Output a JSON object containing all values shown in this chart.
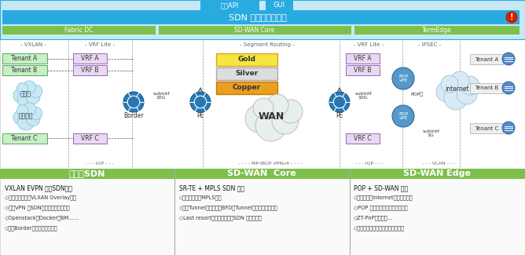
{
  "title_bar": "SDN 网络业务编排器",
  "north_api": "北向API",
  "gui": "GUI",
  "fabric_dc": "Fabric DC",
  "sd_wan_core": "SD-WAN Core",
  "term_edge": "TermEdge",
  "zones": [
    "VXLAN",
    "VRF Lite",
    "Segment Routing",
    "VRF Lite",
    "IPSEC"
  ],
  "tenants_left": [
    "Tenant A",
    "Tenant B"
  ],
  "tenant_c_left": "Tenant C",
  "vrfs_left": [
    "VRF A",
    "VRF B"
  ],
  "vrf_c_left": "VRF C",
  "cloud_labels": [
    "私有云",
    "公共资源"
  ],
  "border_label": "Border",
  "gold": "Gold",
  "silver": "Silver",
  "copper": "Copper",
  "wan_label": "WAN",
  "mp_ibgp": "MP-iBGP VPNv4",
  "vrfs_right": [
    "VRF A",
    "VRF B"
  ],
  "vrf_c_right": "VRF C",
  "pop_vpe": "POP\nvPE",
  "pop_ju": "POP局",
  "subintf_1g": "subintf\n1G",
  "internet_label": "internet",
  "tenants_right": [
    "Tenant A",
    "Tenant B",
    "Tenant C"
  ],
  "bottom_headers": [
    "云中心SDN",
    "SD-WAN  Core",
    "SD-WAN Edge"
  ],
  "col1_title": "VXLAN EVPN 融合SDN架构",
  "col1_lines": [
    "◇云数据中心基于VLXAN Overlay架构",
    "◇基于VPN 和SDN的路由策略统一管理",
    "◇Openstack、Docker、BM……",
    "◇组入Border实现跨行敏捷调度"
  ],
  "col2_title": "SR-TE + MPLS SDN 架构",
  "col2_lines": [
    "◇简化并极大化MPLS配置",
    "◇优化Tunnel模型（本地BFD检Tunnel状态，快速切换）",
    "◇Last resort策略，不依赖中SDN 控制器路径"
  ],
  "col3_title": "POP + SD-WAN 架构",
  "col3_lines": [
    "◇支持专线和Internet双接入层网络",
    "◇POP 简化，多如接层网，多入口",
    "◇ZT-PnP，自助化…",
    "◇组入接入层实现平行发布连绝策略"
  ]
}
